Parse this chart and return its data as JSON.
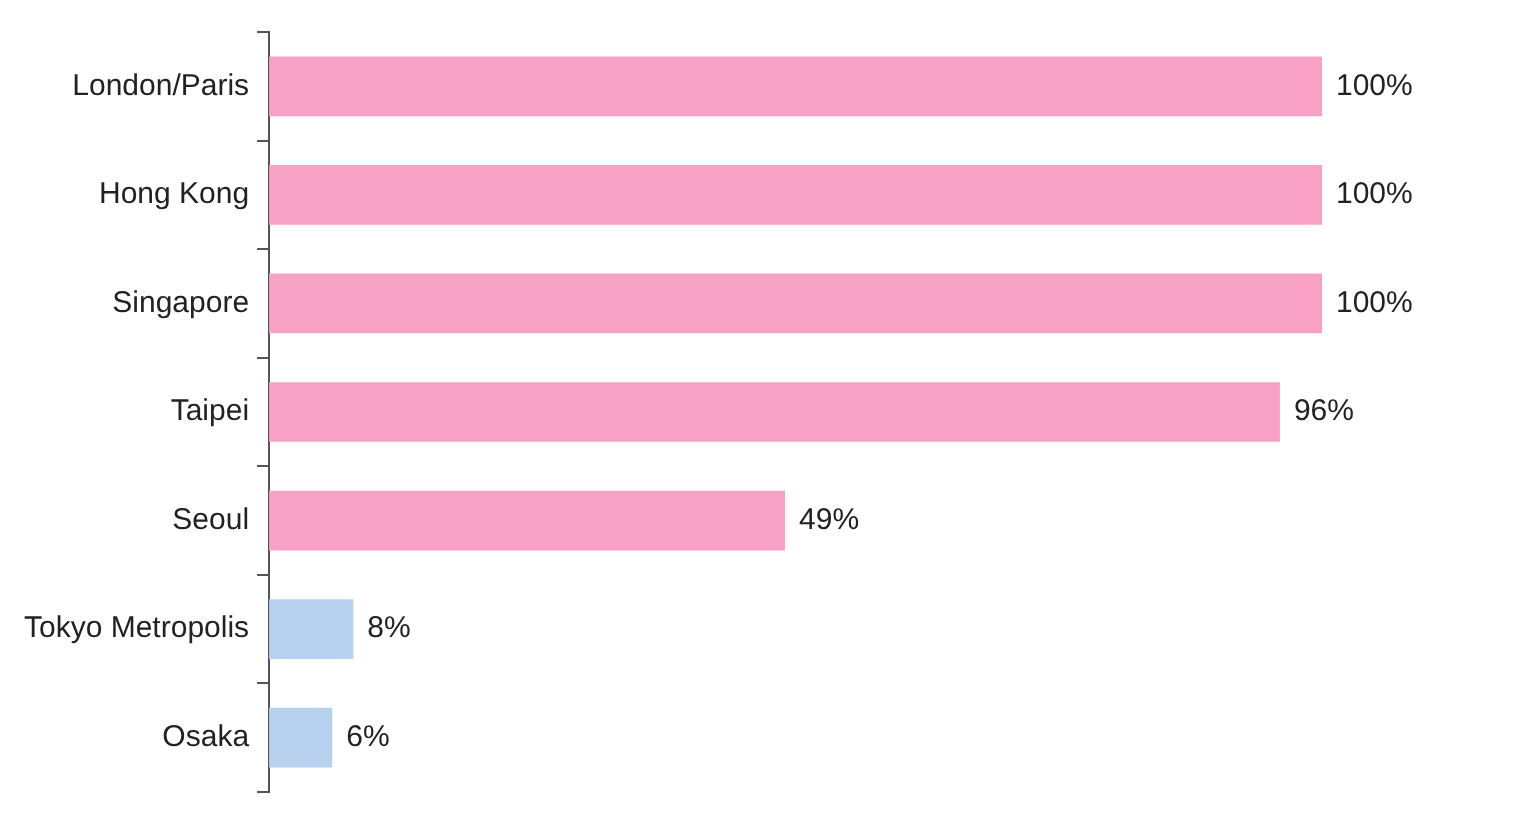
{
  "chart_data": {
    "type": "bar",
    "orientation": "horizontal",
    "categories": [
      "London/Paris",
      "Hong Kong",
      "Singapore",
      "Taipei",
      "Seoul",
      "Tokyo Metropolis",
      "Osaka"
    ],
    "values": [
      100,
      100,
      100,
      96,
      49,
      8,
      6
    ],
    "colors": [
      "#f7a1c4",
      "#f7a1c4",
      "#f7a1c4",
      "#f7a1c4",
      "#f7a1c4",
      "#b8d1ee",
      "#b8d1ee"
    ],
    "value_labels": [
      "100%",
      "100%",
      "100%",
      "96%",
      "49%",
      "8%",
      "6%"
    ]
  }
}
